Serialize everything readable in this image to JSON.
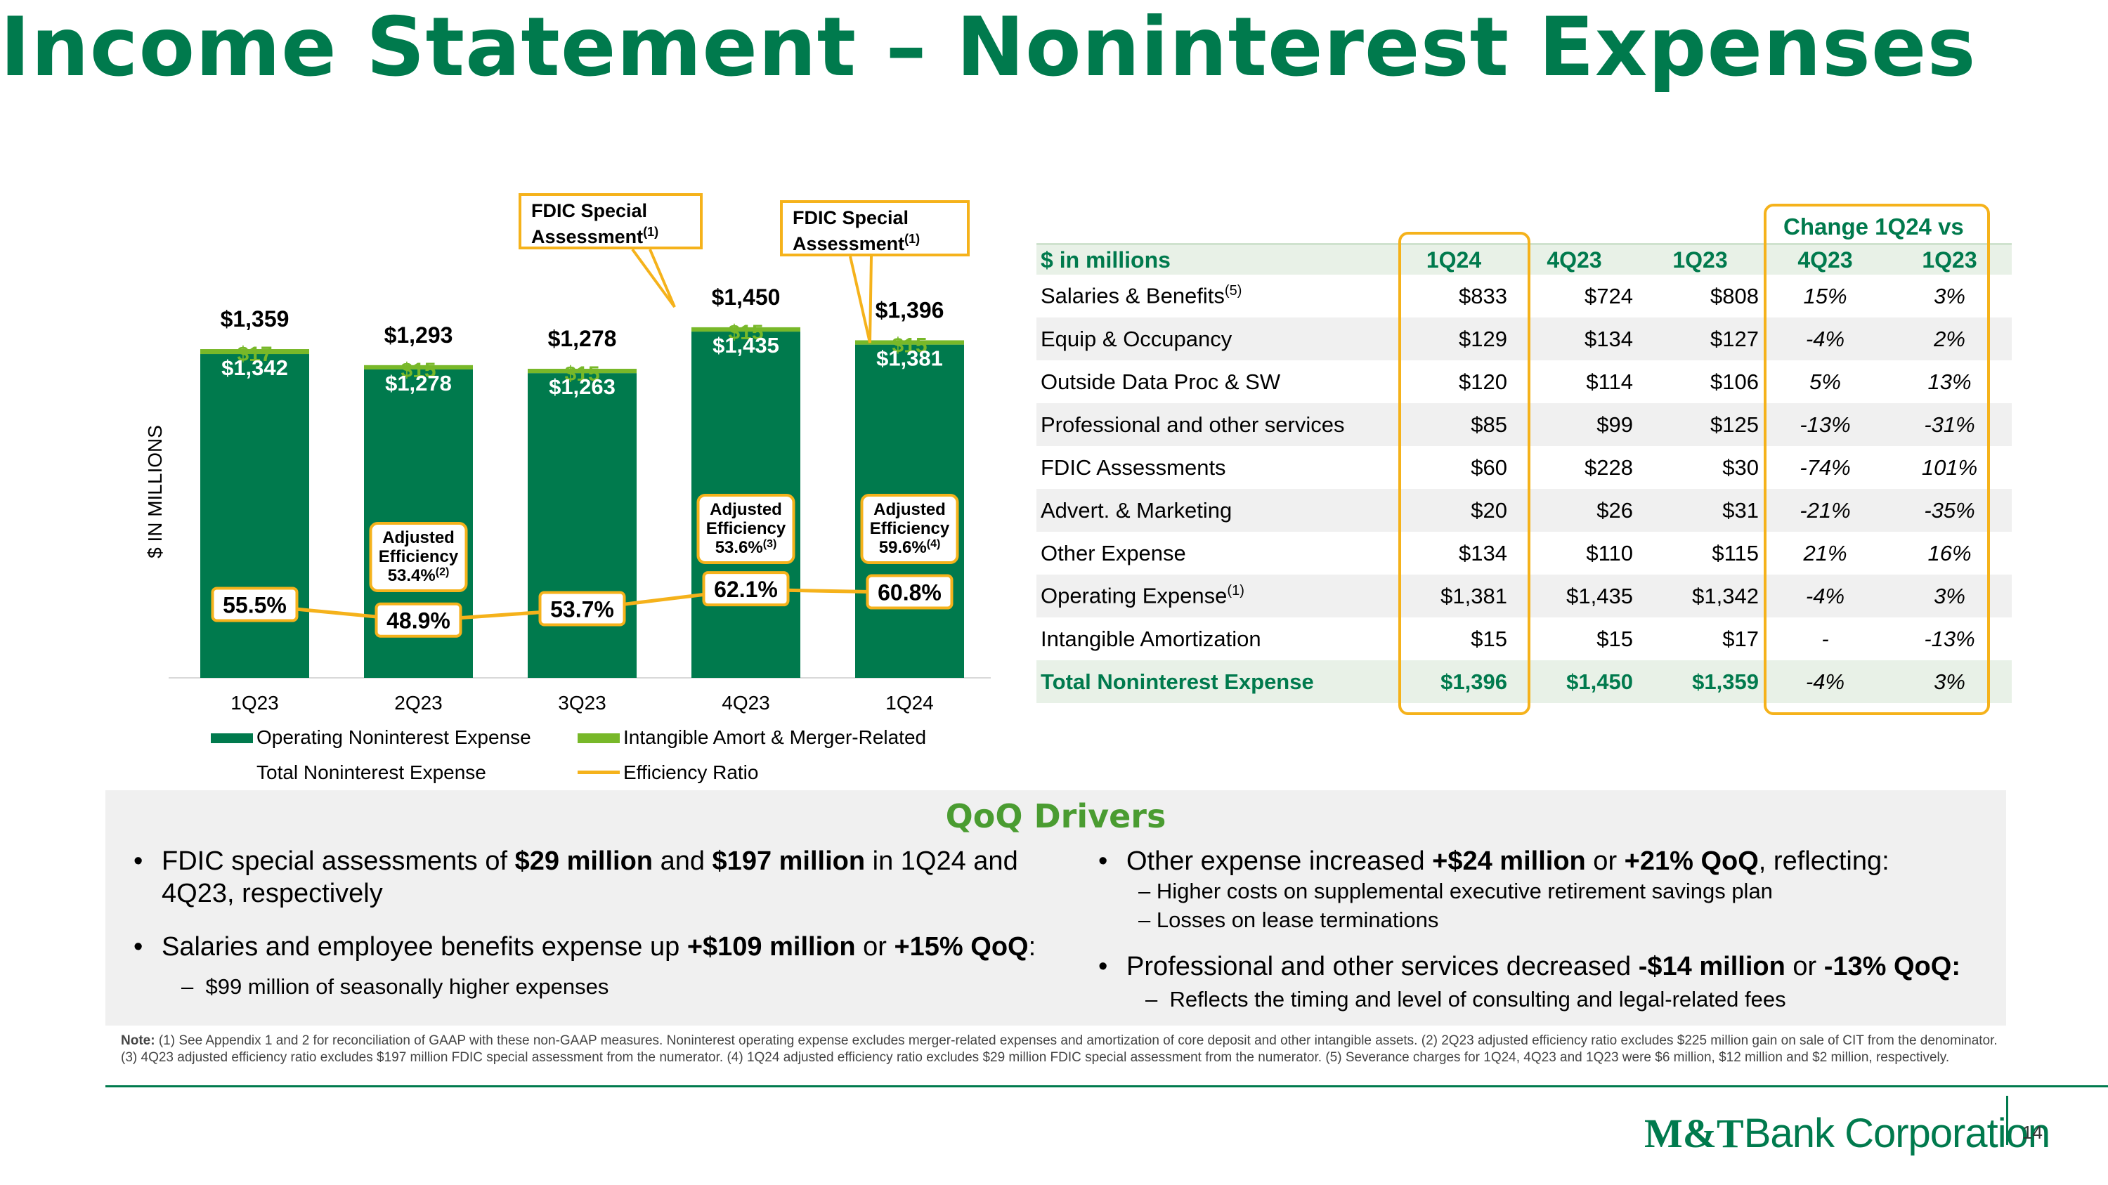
{
  "title": "Income Statement – Noninterest Expenses",
  "colors": {
    "green_dark": "#007a4d",
    "green_light": "#78b829",
    "gold": "#f5b21b"
  },
  "chart_data": {
    "type": "bar",
    "ylabel": "$ IN MILLIONS",
    "categories": [
      "1Q23",
      "2Q23",
      "3Q23",
      "4Q23",
      "1Q24"
    ],
    "series": [
      {
        "name": "Operating Noninterest Expense",
        "values": [
          1342,
          1278,
          1263,
          1435,
          1381
        ],
        "labels": [
          "$1,342",
          "$1,278",
          "$1,263",
          "$1,435",
          "$1,381"
        ]
      },
      {
        "name": "Intangible Amort & Merger-Related",
        "values": [
          17,
          15,
          15,
          15,
          15
        ],
        "labels": [
          "$17",
          "$15",
          "$15",
          "$15",
          "$15"
        ]
      },
      {
        "name": "Total Noninterest Expense",
        "values": [
          1359,
          1293,
          1278,
          1450,
          1396
        ],
        "labels": [
          "$1,359",
          "$1,293",
          "$1,278",
          "$1,450",
          "$1,396"
        ]
      },
      {
        "name": "Efficiency Ratio",
        "values": [
          55.5,
          48.9,
          53.7,
          62.1,
          60.8
        ],
        "labels": [
          "55.5%",
          "48.9%",
          "53.7%",
          "62.1%",
          "60.8%"
        ]
      }
    ],
    "adjusted_efficiency": [
      {
        "category": "2Q23",
        "line1": "Adjusted",
        "line2": "Efficiency",
        "value": "53.4%",
        "note": "(2)"
      },
      {
        "category": "4Q23",
        "line1": "Adjusted",
        "line2": "Efficiency",
        "value": "53.6%",
        "note": "(3)"
      },
      {
        "category": "1Q24",
        "line1": "Adjusted",
        "line2": "Efficiency",
        "value": "59.6%",
        "note": "(4)"
      }
    ],
    "callouts": [
      {
        "line1": "FDIC Special",
        "line2": "Assessment",
        "note": "(1)",
        "category": "4Q23"
      },
      {
        "line1": "FDIC Special",
        "line2": "Assessment",
        "note": "(1)",
        "category": "1Q24"
      }
    ]
  },
  "table": {
    "change_header": "Change 1Q24 vs",
    "columns": [
      "$ in millions",
      "1Q24",
      "4Q23",
      "1Q23",
      "4Q23",
      "1Q23"
    ],
    "rows": [
      {
        "label": "Salaries & Benefits",
        "note": "(5)",
        "v": [
          "$833",
          "$724",
          "$808",
          "15%",
          "3%"
        ]
      },
      {
        "label": "Equip & Occupancy",
        "note": "",
        "v": [
          "$129",
          "$134",
          "$127",
          "-4%",
          "2%"
        ]
      },
      {
        "label": "Outside Data Proc & SW",
        "note": "",
        "v": [
          "$120",
          "$114",
          "$106",
          "5%",
          "13%"
        ]
      },
      {
        "label": "Professional and other services",
        "note": "",
        "v": [
          "$85",
          "$99",
          "$125",
          "-13%",
          "-31%"
        ]
      },
      {
        "label": "FDIC Assessments",
        "note": "",
        "v": [
          "$60",
          "$228",
          "$30",
          "-74%",
          "101%"
        ]
      },
      {
        "label": "Advert. & Marketing",
        "note": "",
        "v": [
          "$20",
          "$26",
          "$31",
          "-21%",
          "-35%"
        ]
      },
      {
        "label": "Other Expense",
        "note": "",
        "v": [
          "$134",
          "$110",
          "$115",
          "21%",
          "16%"
        ]
      },
      {
        "label": "Operating Expense",
        "note": "(1)",
        "v": [
          "$1,381",
          "$1,435",
          "$1,342",
          "-4%",
          "3%"
        ]
      },
      {
        "label": "Intangible Amortization",
        "note": "",
        "v": [
          "$15",
          "$15",
          "$17",
          "-",
          "-13%"
        ]
      },
      {
        "label": "Total Noninterest Expense",
        "note": "",
        "v": [
          "$1,396",
          "$1,450",
          "$1,359",
          "-4%",
          "3%"
        ]
      }
    ]
  },
  "drivers": {
    "title": "QoQ Drivers",
    "left": {
      "b1": {
        "p1": "FDIC special assessments of ",
        "b1": "$29 million",
        "p2": " and ",
        "b2": "$197 million",
        "p3": " in 1Q24 and",
        "line2": "4Q23, respectively"
      },
      "b2": {
        "p1": "Salaries and employee benefits expense up ",
        "b1": "+$109 million",
        "p2": " or ",
        "b2": "+15% QoQ",
        "p3": ":"
      },
      "s1": "$99 million of seasonally higher expenses"
    },
    "right": {
      "b1": {
        "p1": "Other expense increased ",
        "b1": "+$24 million",
        "p2": " or ",
        "b2": "+21% QoQ",
        "p3": ", reflecting:"
      },
      "s1": "Higher costs on supplemental executive retirement savings plan",
      "s2": "Losses on lease terminations",
      "b2": {
        "p1": "Professional and other services decreased ",
        "b1": "-$14 million",
        "p2": " or ",
        "b2": "-13% QoQ:"
      },
      "s3": "Reflects the timing and level of consulting and legal-related fees"
    }
  },
  "note": {
    "label": "Note:",
    "text": " (1) See Appendix 1 and 2 for reconciliation of GAAP with these non-GAAP measures. Noninterest operating expense excludes merger-related expenses and amortization of core deposit and other intangible assets. (2) 2Q23 adjusted efficiency ratio excludes $225 million gain on sale of CIT from the denominator. (3) 4Q23 adjusted efficiency ratio excludes $197 million FDIC special assessment from the numerator. (4) 1Q24 adjusted efficiency ratio excludes $29 million FDIC special assessment from the numerator. (5) Severance charges for 1Q24, 4Q23 and 1Q23 were $6 million, $12 million and $2 million, respectively."
  },
  "footer": {
    "logo_bold": "M&T",
    "logo_rest": "Bank Corporation",
    "page": "14"
  }
}
